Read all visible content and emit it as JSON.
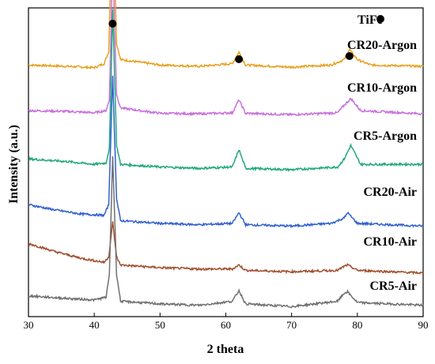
{
  "chart_data": {
    "type": "line",
    "xlabel": "2 theta",
    "ylabel": "Intensity (a.u.)",
    "xlim": [
      30,
      90
    ],
    "x_ticks": [
      30,
      40,
      50,
      60,
      70,
      80,
      90
    ],
    "y_ticks": "none",
    "legend": {
      "label": "TiFe",
      "marker": "filled-circle",
      "placement": "top-right"
    },
    "peak_markers": [
      42.8,
      62.0,
      78.8
    ],
    "series": [
      {
        "name": "CR20-Argon",
        "color": "#E8A020",
        "baseline": 0.905,
        "points": [
          [
            30,
            0.0
          ],
          [
            36,
            -0.005
          ],
          [
            40,
            -0.01
          ],
          [
            41.5,
            0.005
          ],
          [
            42.2,
            0.05
          ],
          [
            42.8,
            0.61
          ],
          [
            43.4,
            0.08
          ],
          [
            44,
            0.02
          ],
          [
            50,
            0.0
          ],
          [
            56,
            -0.005
          ],
          [
            61,
            0.005
          ],
          [
            62,
            0.048
          ],
          [
            63,
            0.0
          ],
          [
            70,
            -0.008
          ],
          [
            76,
            0.0
          ],
          [
            78,
            0.02
          ],
          [
            78.8,
            0.058
          ],
          [
            80,
            0.02
          ],
          [
            82,
            0.0
          ],
          [
            90,
            -0.005
          ]
        ]
      },
      {
        "name": "CR10-Argon",
        "color": "#C870DC",
        "baseline": 0.735,
        "points": [
          [
            30,
            0.0
          ],
          [
            36,
            -0.003
          ],
          [
            40,
            -0.008
          ],
          [
            41.8,
            0.0
          ],
          [
            42.3,
            0.04
          ],
          [
            42.8,
            0.57
          ],
          [
            43.4,
            0.06
          ],
          [
            44,
            0.01
          ],
          [
            50,
            -0.01
          ],
          [
            56,
            -0.012
          ],
          [
            61,
            -0.008
          ],
          [
            62,
            0.04
          ],
          [
            63,
            -0.01
          ],
          [
            70,
            -0.015
          ],
          [
            77,
            -0.008
          ],
          [
            78,
            0.02
          ],
          [
            79,
            0.045
          ],
          [
            80.5,
            0.0
          ],
          [
            90,
            -0.012
          ]
        ]
      },
      {
        "name": "CR5-Argon",
        "color": "#22A878",
        "baseline": 0.555,
        "points": [
          [
            30,
            0.0
          ],
          [
            36,
            -0.01
          ],
          [
            40,
            -0.02
          ],
          [
            41.8,
            -0.015
          ],
          [
            42.3,
            0.04
          ],
          [
            42.8,
            0.56
          ],
          [
            43.4,
            0.05
          ],
          [
            44,
            -0.02
          ],
          [
            50,
            -0.03
          ],
          [
            56,
            -0.035
          ],
          [
            61,
            -0.03
          ],
          [
            62,
            0.035
          ],
          [
            63,
            -0.035
          ],
          [
            70,
            -0.04
          ],
          [
            77,
            -0.03
          ],
          [
            78,
            0.0
          ],
          [
            79,
            0.05
          ],
          [
            80.5,
            -0.02
          ],
          [
            90,
            -0.02
          ]
        ]
      },
      {
        "name": "CR20-Air",
        "color": "#3060D0",
        "baseline": 0.385,
        "points": [
          [
            30,
            0.0
          ],
          [
            34,
            -0.02
          ],
          [
            38,
            -0.035
          ],
          [
            41.5,
            -0.04
          ],
          [
            42.2,
            0.0
          ],
          [
            42.8,
            0.48
          ],
          [
            43.4,
            0.02
          ],
          [
            44,
            -0.06
          ],
          [
            50,
            -0.07
          ],
          [
            56,
            -0.075
          ],
          [
            61,
            -0.07
          ],
          [
            62,
            -0.03
          ],
          [
            63,
            -0.075
          ],
          [
            70,
            -0.08
          ],
          [
            76,
            -0.07
          ],
          [
            78,
            -0.05
          ],
          [
            78.5,
            -0.03
          ],
          [
            80,
            -0.07
          ],
          [
            90,
            -0.08
          ]
        ]
      },
      {
        "name": "CR10-Air",
        "color": "#A05030",
        "baseline": 0.24,
        "points": [
          [
            30,
            0.0
          ],
          [
            34,
            -0.03
          ],
          [
            38,
            -0.055
          ],
          [
            41.5,
            -0.07
          ],
          [
            42.2,
            -0.05
          ],
          [
            42.8,
            0.08
          ],
          [
            43.4,
            -0.05
          ],
          [
            44,
            -0.08
          ],
          [
            50,
            -0.09
          ],
          [
            56,
            -0.095
          ],
          [
            61,
            -0.095
          ],
          [
            62,
            -0.08
          ],
          [
            63,
            -0.1
          ],
          [
            70,
            -0.105
          ],
          [
            77,
            -0.1
          ],
          [
            78,
            -0.085
          ],
          [
            78.5,
            -0.08
          ],
          [
            80,
            -0.1
          ],
          [
            90,
            -0.11
          ]
        ]
      },
      {
        "name": "CR5-Air",
        "color": "#707070",
        "baseline": 0.045,
        "points": [
          [
            30,
            0.0
          ],
          [
            36,
            -0.01
          ],
          [
            40,
            -0.015
          ],
          [
            41.8,
            -0.005
          ],
          [
            42.3,
            0.08
          ],
          [
            42.8,
            0.52
          ],
          [
            43.4,
            0.08
          ],
          [
            44,
            -0.02
          ],
          [
            50,
            -0.03
          ],
          [
            56,
            -0.035
          ],
          [
            61,
            -0.02
          ],
          [
            62,
            0.02
          ],
          [
            63,
            -0.03
          ],
          [
            70,
            -0.04
          ],
          [
            77,
            -0.02
          ],
          [
            78,
            0.01
          ],
          [
            78.5,
            0.015
          ],
          [
            80,
            -0.025
          ],
          [
            90,
            -0.035
          ]
        ]
      }
    ]
  }
}
